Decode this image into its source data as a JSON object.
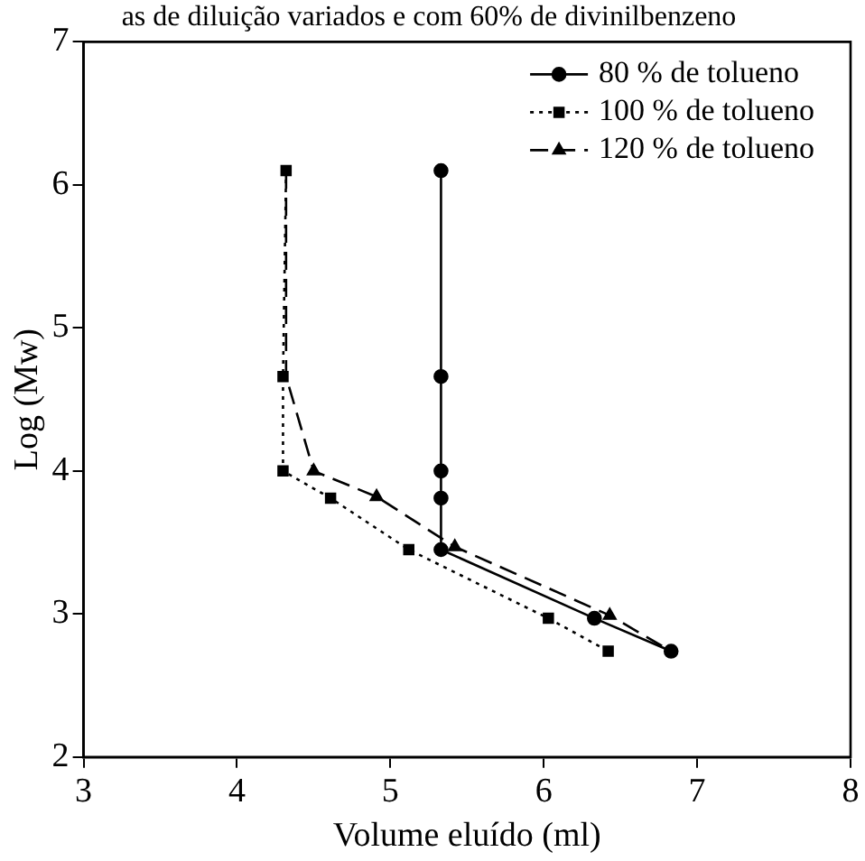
{
  "chart_data": {
    "type": "line",
    "title": "as de diluição variados e com 60% de divinilbenzeno",
    "xlabel": "Volume eluído (ml)",
    "ylabel": "Log (Mw)",
    "xlim": [
      3,
      8
    ],
    "xticks": [
      3,
      4,
      5,
      6,
      7,
      8
    ],
    "ylim": [
      2,
      7
    ],
    "yticks": [
      2,
      3,
      4,
      5,
      6,
      7
    ],
    "grid": false,
    "legend": "top right",
    "series": [
      {
        "name": "80 % de tolueno",
        "color": "#000000",
        "marker": "circle",
        "line_style": "solid",
        "x": [
          5.33,
          5.33,
          5.33,
          5.33,
          5.33,
          6.33,
          6.83
        ],
        "values": [
          6.1,
          4.66,
          4.0,
          3.81,
          3.45,
          2.97,
          2.74
        ]
      },
      {
        "name": "100 % de tolueno",
        "color": "#000000",
        "marker": "square",
        "line_style": "dotted",
        "x": [
          4.32,
          4.3,
          4.3,
          4.61,
          5.12,
          6.03,
          6.42
        ],
        "values": [
          6.1,
          4.66,
          4.0,
          3.81,
          3.45,
          2.97,
          2.74
        ]
      },
      {
        "name": "120 % de tolueno",
        "color": "#000000",
        "marker": "triangle",
        "line_style": "dashed",
        "x": [
          4.32,
          4.32,
          4.5,
          4.91,
          5.42,
          6.43,
          6.83
        ],
        "values": [
          6.1,
          4.66,
          4.0,
          3.82,
          3.47,
          2.99,
          2.74
        ]
      }
    ]
  }
}
